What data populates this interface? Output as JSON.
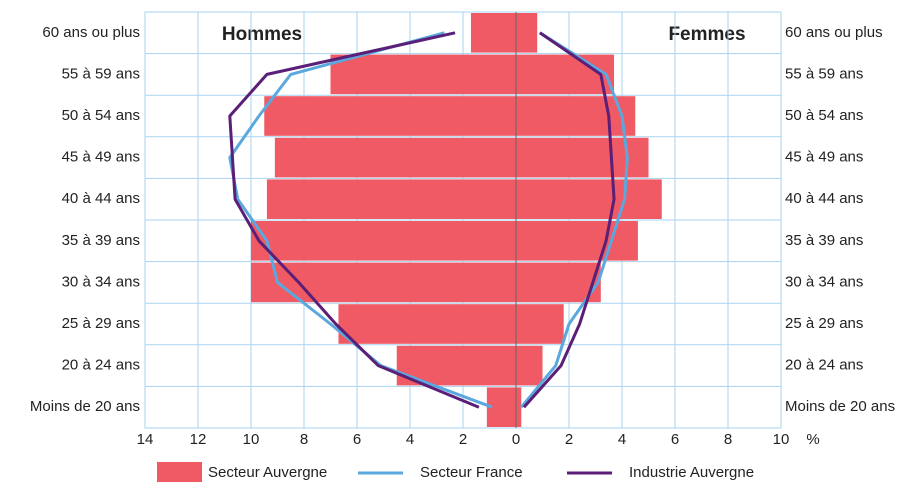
{
  "chart_data": {
    "type": "pyramid",
    "categories": [
      "60 ans ou plus",
      "55 à 59 ans",
      "50 à 54 ans",
      "45 à 49 ans",
      "40 à 44 ans",
      "35 à 39 ans",
      "30 à 34 ans",
      "25 à 29 ans",
      "20 à 24 ans",
      "Moins de 20 ans"
    ],
    "left_label": "Hommes",
    "right_label": "Femmes",
    "x_unit": "%",
    "hommes_xlim": [
      0,
      14
    ],
    "hommes_xticks": [
      0,
      2,
      4,
      6,
      8,
      10,
      12,
      14
    ],
    "femmes_xlim": [
      0,
      10
    ],
    "femmes_xticks": [
      2,
      4,
      6,
      8,
      10
    ],
    "grid": true,
    "series": [
      {
        "name": "Secteur Auvergne",
        "kind": "bar",
        "color": "#f05a64",
        "hommes": [
          1.7,
          7.0,
          9.5,
          9.1,
          9.4,
          10.0,
          10.0,
          6.7,
          4.5,
          1.1
        ],
        "femmes": [
          0.8,
          3.7,
          4.5,
          5.0,
          5.5,
          4.6,
          3.2,
          1.8,
          1.0,
          0.2
        ]
      },
      {
        "name": "Secteur France",
        "kind": "line",
        "color": "#5aa8de",
        "hommes": [
          2.7,
          8.5,
          9.7,
          10.8,
          10.5,
          9.4,
          9.0,
          7.0,
          5.1,
          0.9
        ],
        "femmes": [
          0.9,
          3.4,
          4.0,
          4.2,
          4.1,
          3.6,
          3.1,
          2.0,
          1.5,
          0.2
        ]
      },
      {
        "name": "Industrie Auvergne",
        "kind": "line",
        "color": "#5b1f78",
        "hommes": [
          2.3,
          9.4,
          10.8,
          10.7,
          10.6,
          9.7,
          8.2,
          6.8,
          5.2,
          1.4
        ],
        "femmes": [
          0.9,
          3.2,
          3.5,
          3.6,
          3.7,
          3.4,
          2.9,
          2.4,
          1.7,
          0.3
        ]
      }
    ]
  }
}
